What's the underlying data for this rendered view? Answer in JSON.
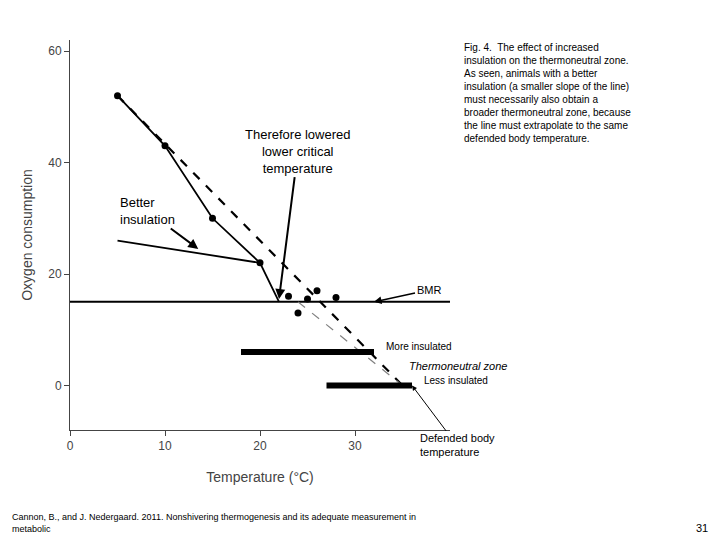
{
  "chart_data": {
    "type": "line",
    "xlabel": "Temperature (°C)",
    "ylabel": "Oxygen consumption",
    "xlim": [
      0,
      40
    ],
    "ylim": [
      -8,
      62
    ],
    "xticks": [
      0,
      10,
      20,
      30
    ],
    "yticks": [
      0,
      20,
      40,
      60
    ],
    "grid": false,
    "series": [
      {
        "type": "line",
        "x": [
          0,
          40
        ],
        "values": [
          15,
          15
        ],
        "color": "black",
        "line_style": "solid"
      },
      {
        "type": "line",
        "x": [
          5,
          10,
          15,
          20
        ],
        "values": [
          52,
          43,
          30,
          22
        ],
        "color": "black",
        "line_style": "solid",
        "marker": "circle"
      },
      {
        "type": "line",
        "x": [
          5,
          20,
          22
        ],
        "values": [
          26,
          22,
          15
        ],
        "color": "black",
        "line_style": "solid"
      },
      {
        "type": "scatter",
        "x": [
          23,
          25,
          26,
          28,
          24
        ],
        "values": [
          16,
          15.5,
          17,
          15.8,
          13
        ],
        "color": "black",
        "marker": "circle"
      },
      {
        "type": "line",
        "x": [
          5,
          35
        ],
        "values": [
          52,
          0
        ],
        "color": "black",
        "line_style": "dashed"
      },
      {
        "type": "line",
        "x": [
          24,
          35
        ],
        "values": [
          15,
          0
        ],
        "color": "gray",
        "line_style": "dashed"
      },
      {
        "type": "line",
        "x": [
          18,
          32
        ],
        "values": [
          6,
          6
        ],
        "color": "black",
        "line_style": "thick"
      },
      {
        "type": "line",
        "x": [
          27,
          36
        ],
        "values": [
          0,
          0
        ],
        "color": "black",
        "line_style": "thick"
      }
    ],
    "annotations": [
      {
        "text": "BMR",
        "x": 32,
        "y": 15
      },
      {
        "text": "More insulated",
        "x": 33,
        "y": 7
      },
      {
        "text": "Thermoneutral zone",
        "x": 35.5,
        "y": 5
      },
      {
        "text": "Less insulated",
        "x": 37,
        "y": 0.8
      },
      {
        "text": "Defended body\ntemperature",
        "x": 36,
        "y": 0
      },
      {
        "text": "Better\ninsulation",
        "x": 13.5,
        "y": 24.5
      },
      {
        "text": "Therefore lowered\nlower critical\ntemperature",
        "x": 22,
        "y": 15.5
      },
      {
        "text": "Fig. 4.  The effect of increased\ninsulation on the thermoneutral zone.\nAs seen, animals with a better\ninsulation (a smaller slope of the line)\nmust necessarily also obtain a\nbroader thermoneutral zone, because\nthe line must extrapolate to the same\ndefended body temperature."
      },
      {
        "text": "Cannon, B., and J. Nedergaard. 2011. Nonshivering thermogenesis and its adequate measurement in\nmetabolic"
      },
      {
        "text": "31"
      }
    ]
  }
}
